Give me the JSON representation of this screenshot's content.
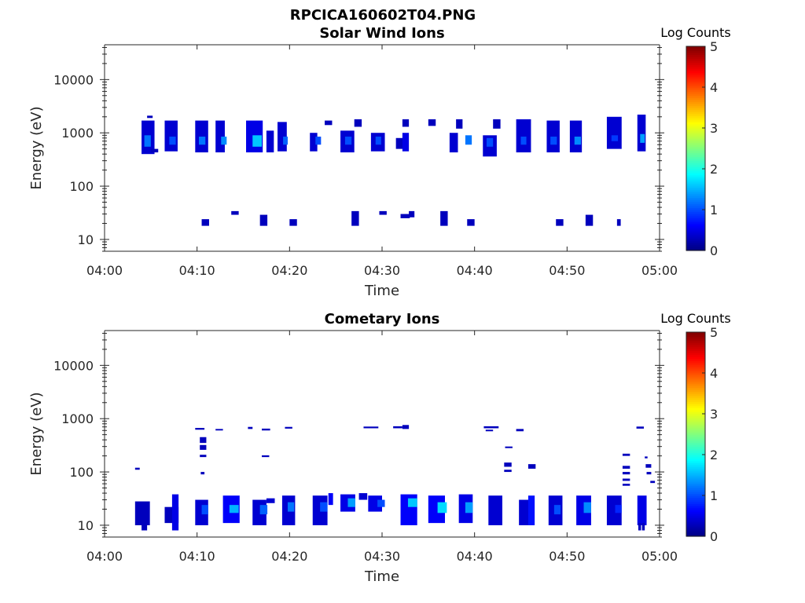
{
  "figure": {
    "title": "RPCICA160602T04.PNG",
    "background": "#ffffff"
  },
  "chart_data": [
    {
      "type": "heatmap",
      "title": "Solar Wind Ions",
      "xlabel": "Time",
      "ylabel": "Energy (eV)",
      "xlim": [
        "04:00",
        "05:00"
      ],
      "x_ticks": [
        "04:00",
        "04:10",
        "04:20",
        "04:30",
        "04:40",
        "04:50",
        "05:00"
      ],
      "y_scale": "log",
      "ylim": [
        6,
        45000
      ],
      "y_ticks": [
        10,
        100,
        1000,
        10000
      ],
      "y_tick_labels": [
        "10",
        "100",
        "1000",
        "10000"
      ],
      "colorbar": {
        "label": "Log Counts",
        "range": [
          0,
          5
        ],
        "ticks": [
          "0",
          "1",
          "2",
          "3",
          "4",
          "5"
        ],
        "colormap": "jet"
      },
      "cells": [
        {
          "t": 4.0,
          "w": 1.4,
          "e0": 400,
          "e1": 1700,
          "v": 0.4
        },
        {
          "t": 4.3,
          "w": 0.7,
          "e0": 550,
          "e1": 900,
          "v": 1.2
        },
        {
          "t": 4.6,
          "w": 0.6,
          "e0": 1900,
          "e1": 2100,
          "v": 0.3
        },
        {
          "t": 5.0,
          "w": 0.8,
          "e0": 430,
          "e1": 500,
          "v": 0.3
        },
        {
          "t": 6.5,
          "w": 1.4,
          "e0": 450,
          "e1": 1700,
          "v": 0.4
        },
        {
          "t": 7.0,
          "w": 0.7,
          "e0": 600,
          "e1": 850,
          "v": 1.0
        },
        {
          "t": 9.8,
          "w": 1.4,
          "e0": 430,
          "e1": 1700,
          "v": 0.4
        },
        {
          "t": 10.2,
          "w": 0.7,
          "e0": 600,
          "e1": 850,
          "v": 1.2
        },
        {
          "t": 12.0,
          "w": 1.0,
          "e0": 430,
          "e1": 1700,
          "v": 0.4
        },
        {
          "t": 12.6,
          "w": 0.6,
          "e0": 600,
          "e1": 850,
          "v": 1.3
        },
        {
          "t": 15.3,
          "w": 1.8,
          "e0": 430,
          "e1": 1700,
          "v": 0.5
        },
        {
          "t": 16.0,
          "w": 1.0,
          "e0": 550,
          "e1": 900,
          "v": 1.6
        },
        {
          "t": 17.5,
          "w": 0.8,
          "e0": 430,
          "e1": 1100,
          "v": 0.4
        },
        {
          "t": 18.7,
          "w": 1.0,
          "e0": 450,
          "e1": 1600,
          "v": 0.4
        },
        {
          "t": 19.3,
          "w": 0.5,
          "e0": 600,
          "e1": 850,
          "v": 1.1
        },
        {
          "t": 22.2,
          "w": 0.8,
          "e0": 450,
          "e1": 1000,
          "v": 0.4
        },
        {
          "t": 22.8,
          "w": 0.6,
          "e0": 600,
          "e1": 850,
          "v": 1.0
        },
        {
          "t": 23.8,
          "w": 0.8,
          "e0": 1400,
          "e1": 1700,
          "v": 0.3
        },
        {
          "t": 25.5,
          "w": 1.5,
          "e0": 430,
          "e1": 1100,
          "v": 0.4
        },
        {
          "t": 26.0,
          "w": 0.7,
          "e0": 600,
          "e1": 850,
          "v": 1.0
        },
        {
          "t": 27.0,
          "w": 0.8,
          "e0": 1300,
          "e1": 1800,
          "v": 0.3
        },
        {
          "t": 28.8,
          "w": 1.5,
          "e0": 450,
          "e1": 1000,
          "v": 0.4
        },
        {
          "t": 29.3,
          "w": 0.6,
          "e0": 600,
          "e1": 850,
          "v": 1.0
        },
        {
          "t": 31.5,
          "w": 0.8,
          "e0": 500,
          "e1": 800,
          "v": 0.3
        },
        {
          "t": 32.2,
          "w": 0.7,
          "e0": 450,
          "e1": 1000,
          "v": 0.5
        },
        {
          "t": 32.2,
          "w": 0.7,
          "e0": 1300,
          "e1": 1800,
          "v": 0.3
        },
        {
          "t": 35.0,
          "w": 0.8,
          "e0": 1350,
          "e1": 1800,
          "v": 0.3
        },
        {
          "t": 37.3,
          "w": 0.9,
          "e0": 430,
          "e1": 1000,
          "v": 0.4
        },
        {
          "t": 38.0,
          "w": 0.7,
          "e0": 1200,
          "e1": 1800,
          "v": 0.3
        },
        {
          "t": 39.0,
          "w": 0.7,
          "e0": 600,
          "e1": 900,
          "v": 1.2
        },
        {
          "t": 40.9,
          "w": 1.5,
          "e0": 360,
          "e1": 900,
          "v": 0.4
        },
        {
          "t": 41.3,
          "w": 0.7,
          "e0": 550,
          "e1": 800,
          "v": 1.0
        },
        {
          "t": 42.0,
          "w": 0.8,
          "e0": 1200,
          "e1": 1800,
          "v": 0.3
        },
        {
          "t": 44.5,
          "w": 1.6,
          "e0": 430,
          "e1": 1800,
          "v": 0.4
        },
        {
          "t": 45.0,
          "w": 0.6,
          "e0": 600,
          "e1": 850,
          "v": 1.0
        },
        {
          "t": 47.8,
          "w": 1.4,
          "e0": 430,
          "e1": 1700,
          "v": 0.4
        },
        {
          "t": 48.2,
          "w": 0.7,
          "e0": 600,
          "e1": 850,
          "v": 1.0
        },
        {
          "t": 50.3,
          "w": 1.3,
          "e0": 430,
          "e1": 1700,
          "v": 0.4
        },
        {
          "t": 50.8,
          "w": 0.7,
          "e0": 600,
          "e1": 850,
          "v": 1.3
        },
        {
          "t": 54.3,
          "w": 1.6,
          "e0": 500,
          "e1": 2000,
          "v": 0.4
        },
        {
          "t": 54.8,
          "w": 0.7,
          "e0": 700,
          "e1": 900,
          "v": 0.9
        },
        {
          "t": 57.6,
          "w": 0.9,
          "e0": 450,
          "e1": 2200,
          "v": 0.4
        },
        {
          "t": 57.9,
          "w": 0.5,
          "e0": 650,
          "e1": 950,
          "v": 1.4
        },
        {
          "t": 10.5,
          "w": 0.8,
          "e0": 18,
          "e1": 24,
          "v": 0.3
        },
        {
          "t": 13.7,
          "w": 0.8,
          "e0": 29,
          "e1": 34,
          "v": 0.3
        },
        {
          "t": 16.8,
          "w": 0.8,
          "e0": 18,
          "e1": 29,
          "v": 0.3
        },
        {
          "t": 20.0,
          "w": 0.8,
          "e0": 18,
          "e1": 24,
          "v": 0.3
        },
        {
          "t": 26.7,
          "w": 0.8,
          "e0": 18,
          "e1": 34,
          "v": 0.3
        },
        {
          "t": 29.7,
          "w": 0.8,
          "e0": 29,
          "e1": 34,
          "v": 0.3
        },
        {
          "t": 32.0,
          "w": 1.0,
          "e0": 25,
          "e1": 30,
          "v": 0.3
        },
        {
          "t": 32.9,
          "w": 0.6,
          "e0": 26,
          "e1": 34,
          "v": 0.3
        },
        {
          "t": 36.3,
          "w": 0.8,
          "e0": 18,
          "e1": 34,
          "v": 0.3
        },
        {
          "t": 39.2,
          "w": 0.8,
          "e0": 18,
          "e1": 24,
          "v": 0.3
        },
        {
          "t": 48.8,
          "w": 0.8,
          "e0": 18,
          "e1": 24,
          "v": 0.3
        },
        {
          "t": 52.0,
          "w": 0.8,
          "e0": 18,
          "e1": 29,
          "v": 0.3
        },
        {
          "t": 55.4,
          "w": 0.4,
          "e0": 18,
          "e1": 24,
          "v": 0.3
        }
      ]
    },
    {
      "type": "heatmap",
      "title": "Cometary Ions",
      "xlabel": "Time",
      "ylabel": "Energy (eV)",
      "xlim": [
        "04:00",
        "05:00"
      ],
      "x_ticks": [
        "04:00",
        "04:10",
        "04:20",
        "04:30",
        "04:40",
        "04:50",
        "05:00"
      ],
      "y_scale": "log",
      "ylim": [
        6,
        45000
      ],
      "y_ticks": [
        10,
        100,
        1000,
        10000
      ],
      "y_tick_labels": [
        "10",
        "100",
        "1000",
        "10000"
      ],
      "colorbar": {
        "label": "Log Counts",
        "range": [
          0,
          5
        ],
        "ticks": [
          "0",
          "1",
          "2",
          "3",
          "4",
          "5"
        ],
        "colormap": "jet"
      },
      "cells": [
        {
          "t": 3.3,
          "w": 1.6,
          "e0": 10,
          "e1": 28,
          "v": 0.3
        },
        {
          "t": 4.0,
          "w": 0.6,
          "e0": 8,
          "e1": 11,
          "v": 0.3
        },
        {
          "t": 3.3,
          "w": 0.5,
          "e0": 110,
          "e1": 120,
          "v": 0.3
        },
        {
          "t": 6.5,
          "w": 1.5,
          "e0": 11,
          "e1": 22,
          "v": 0.3
        },
        {
          "t": 7.3,
          "w": 0.7,
          "e0": 8,
          "e1": 38,
          "v": 0.5
        },
        {
          "t": 9.8,
          "w": 1.4,
          "e0": 10,
          "e1": 30,
          "v": 0.4
        },
        {
          "t": 10.5,
          "w": 0.7,
          "e0": 16,
          "e1": 24,
          "v": 1.0
        },
        {
          "t": 12.8,
          "w": 1.8,
          "e0": 11,
          "e1": 36,
          "v": 0.6
        },
        {
          "t": 13.5,
          "w": 1.0,
          "e0": 17,
          "e1": 24,
          "v": 1.5
        },
        {
          "t": 16.0,
          "w": 1.5,
          "e0": 10,
          "e1": 30,
          "v": 0.4
        },
        {
          "t": 16.8,
          "w": 0.8,
          "e0": 16,
          "e1": 24,
          "v": 1.1
        },
        {
          "t": 17.5,
          "w": 0.9,
          "e0": 26,
          "e1": 32,
          "v": 0.4
        },
        {
          "t": 19.2,
          "w": 1.4,
          "e0": 10,
          "e1": 36,
          "v": 0.4
        },
        {
          "t": 19.8,
          "w": 0.7,
          "e0": 18,
          "e1": 27,
          "v": 1.2
        },
        {
          "t": 22.5,
          "w": 1.6,
          "e0": 10,
          "e1": 36,
          "v": 0.4
        },
        {
          "t": 23.3,
          "w": 0.8,
          "e0": 18,
          "e1": 27,
          "v": 1.0
        },
        {
          "t": 24.2,
          "w": 0.5,
          "e0": 24,
          "e1": 40,
          "v": 0.6
        },
        {
          "t": 25.5,
          "w": 1.6,
          "e0": 18,
          "e1": 38,
          "v": 0.5
        },
        {
          "t": 26.3,
          "w": 0.8,
          "e0": 22,
          "e1": 32,
          "v": 1.4
        },
        {
          "t": 27.5,
          "w": 0.9,
          "e0": 30,
          "e1": 40,
          "v": 0.4
        },
        {
          "t": 28.5,
          "w": 1.5,
          "e0": 18,
          "e1": 36,
          "v": 0.5
        },
        {
          "t": 29.5,
          "w": 0.8,
          "e0": 22,
          "e1": 30,
          "v": 1.0
        },
        {
          "t": 32.0,
          "w": 1.8,
          "e0": 10,
          "e1": 38,
          "v": 0.6
        },
        {
          "t": 32.8,
          "w": 1.0,
          "e0": 22,
          "e1": 32,
          "v": 1.6
        },
        {
          "t": 35.0,
          "w": 1.8,
          "e0": 11,
          "e1": 36,
          "v": 0.6
        },
        {
          "t": 36.0,
          "w": 1.0,
          "e0": 17,
          "e1": 27,
          "v": 1.7
        },
        {
          "t": 38.3,
          "w": 1.5,
          "e0": 11,
          "e1": 38,
          "v": 0.5
        },
        {
          "t": 39.0,
          "w": 0.8,
          "e0": 17,
          "e1": 27,
          "v": 1.4
        },
        {
          "t": 41.5,
          "w": 1.5,
          "e0": 10,
          "e1": 36,
          "v": 0.4
        },
        {
          "t": 44.8,
          "w": 1.6,
          "e0": 10,
          "e1": 30,
          "v": 0.4
        },
        {
          "t": 45.8,
          "w": 0.7,
          "e0": 10,
          "e1": 36,
          "v": 0.7
        },
        {
          "t": 48.0,
          "w": 1.5,
          "e0": 10,
          "e1": 36,
          "v": 0.4
        },
        {
          "t": 48.6,
          "w": 0.7,
          "e0": 16,
          "e1": 24,
          "v": 1.0
        },
        {
          "t": 51.0,
          "w": 1.6,
          "e0": 10,
          "e1": 36,
          "v": 0.5
        },
        {
          "t": 51.8,
          "w": 0.8,
          "e0": 17,
          "e1": 27,
          "v": 1.3
        },
        {
          "t": 54.3,
          "w": 1.6,
          "e0": 10,
          "e1": 36,
          "v": 0.4
        },
        {
          "t": 55.2,
          "w": 0.7,
          "e0": 17,
          "e1": 24,
          "v": 0.8
        },
        {
          "t": 57.6,
          "w": 1.0,
          "e0": 10,
          "e1": 36,
          "v": 0.5
        },
        {
          "t": 57.7,
          "w": 0.3,
          "e0": 8,
          "e1": 11,
          "v": 0.3
        },
        {
          "t": 58.1,
          "w": 0.3,
          "e0": 8,
          "e1": 11,
          "v": 0.3
        },
        {
          "t": 9.8,
          "w": 1.0,
          "e0": 620,
          "e1": 670,
          "v": 0.3
        },
        {
          "t": 12.0,
          "w": 0.8,
          "e0": 600,
          "e1": 640,
          "v": 0.3
        },
        {
          "t": 15.5,
          "w": 0.5,
          "e0": 640,
          "e1": 700,
          "v": 0.3
        },
        {
          "t": 17.0,
          "w": 0.9,
          "e0": 600,
          "e1": 650,
          "v": 0.3
        },
        {
          "t": 19.5,
          "w": 0.8,
          "e0": 650,
          "e1": 700,
          "v": 0.3
        },
        {
          "t": 28.0,
          "w": 1.6,
          "e0": 660,
          "e1": 710,
          "v": 0.3
        },
        {
          "t": 31.2,
          "w": 1.0,
          "e0": 660,
          "e1": 720,
          "v": 0.3
        },
        {
          "t": 32.2,
          "w": 0.7,
          "e0": 640,
          "e1": 760,
          "v": 0.3
        },
        {
          "t": 41.0,
          "w": 1.6,
          "e0": 660,
          "e1": 720,
          "v": 0.3
        },
        {
          "t": 41.2,
          "w": 0.8,
          "e0": 580,
          "e1": 620,
          "v": 0.3
        },
        {
          "t": 44.5,
          "w": 0.8,
          "e0": 580,
          "e1": 640,
          "v": 0.3
        },
        {
          "t": 57.5,
          "w": 0.8,
          "e0": 650,
          "e1": 710,
          "v": 0.3
        },
        {
          "t": 10.3,
          "w": 0.7,
          "e0": 350,
          "e1": 450,
          "v": 0.3
        },
        {
          "t": 10.3,
          "w": 0.7,
          "e0": 260,
          "e1": 320,
          "v": 0.3
        },
        {
          "t": 10.3,
          "w": 0.7,
          "e0": 190,
          "e1": 210,
          "v": 0.3
        },
        {
          "t": 10.4,
          "w": 0.4,
          "e0": 90,
          "e1": 100,
          "v": 0.3
        },
        {
          "t": 17.0,
          "w": 0.8,
          "e0": 190,
          "e1": 205,
          "v": 0.3
        },
        {
          "t": 43.3,
          "w": 0.8,
          "e0": 280,
          "e1": 300,
          "v": 0.3
        },
        {
          "t": 43.2,
          "w": 0.8,
          "e0": 125,
          "e1": 150,
          "v": 0.3
        },
        {
          "t": 43.2,
          "w": 0.8,
          "e0": 100,
          "e1": 110,
          "v": 0.3
        },
        {
          "t": 45.8,
          "w": 0.8,
          "e0": 115,
          "e1": 140,
          "v": 0.3
        },
        {
          "t": 56.0,
          "w": 0.8,
          "e0": 200,
          "e1": 220,
          "v": 0.3
        },
        {
          "t": 56.0,
          "w": 0.8,
          "e0": 115,
          "e1": 130,
          "v": 0.3
        },
        {
          "t": 56.0,
          "w": 0.8,
          "e0": 90,
          "e1": 100,
          "v": 0.3
        },
        {
          "t": 56.0,
          "w": 0.8,
          "e0": 68,
          "e1": 75,
          "v": 0.3
        },
        {
          "t": 56.0,
          "w": 0.8,
          "e0": 55,
          "e1": 60,
          "v": 0.3
        },
        {
          "t": 58.4,
          "w": 0.3,
          "e0": 180,
          "e1": 195,
          "v": 0.3
        },
        {
          "t": 58.5,
          "w": 0.6,
          "e0": 120,
          "e1": 140,
          "v": 0.3
        },
        {
          "t": 58.6,
          "w": 0.5,
          "e0": 90,
          "e1": 100,
          "v": 0.3
        },
        {
          "t": 59.0,
          "w": 0.5,
          "e0": 62,
          "e1": 68,
          "v": 0.3
        }
      ]
    }
  ]
}
